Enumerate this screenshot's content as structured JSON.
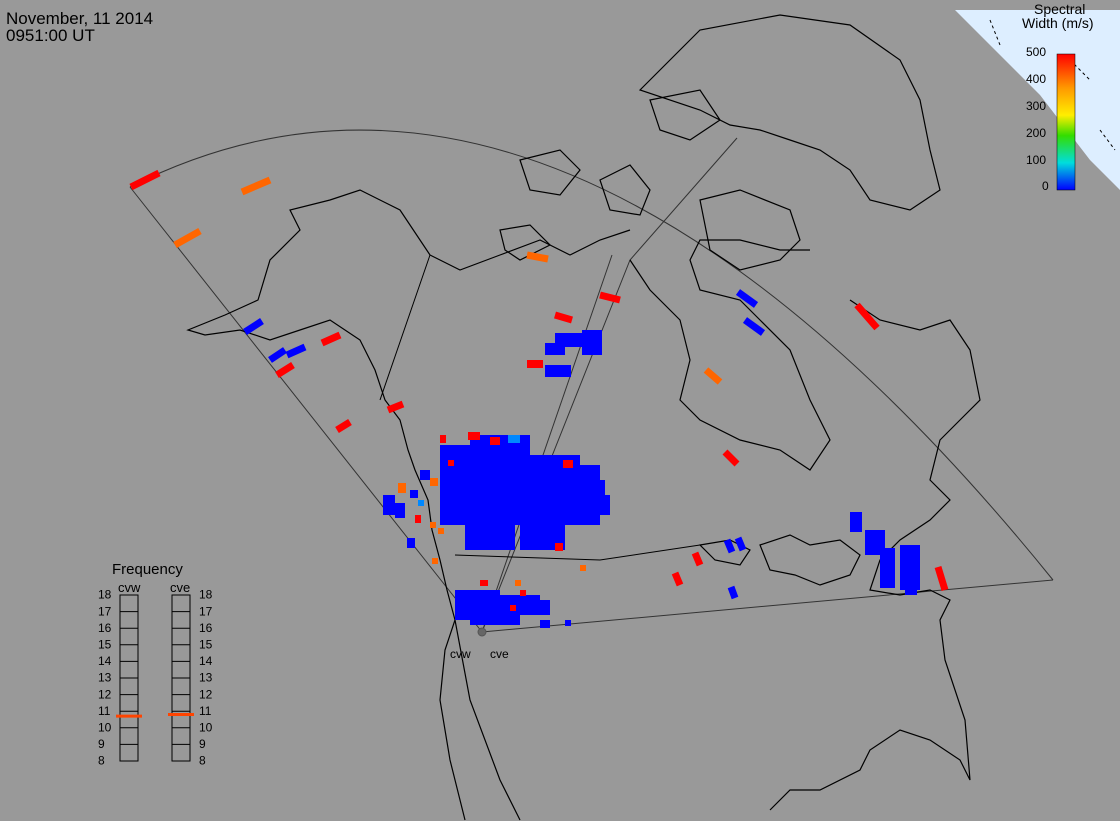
{
  "header": {
    "date": "November, 11 2014",
    "time": "0951:00 UT"
  },
  "colorbar": {
    "title_line1": "Spectral",
    "title_line2": "Width (m/s)",
    "ticks": [
      "500",
      "400",
      "300",
      "200",
      "100",
      "0"
    ],
    "colors": [
      "#ff0000",
      "#ff9900",
      "#ffee00",
      "#33dd00",
      "#00dddd",
      "#0000ff"
    ]
  },
  "frequency": {
    "title": "Frequency",
    "radar_left": "cvw",
    "radar_right": "cve",
    "scale": [
      "18",
      "17",
      "16",
      "15",
      "14",
      "13",
      "12",
      "11",
      "10",
      "9",
      "8"
    ],
    "left_value_mhz": 10.7,
    "right_value_mhz": 10.8,
    "marker_color": "#ff4400"
  },
  "radars": {
    "west": "cvw",
    "east": "cve"
  },
  "colors": {
    "background": "#999999",
    "red": "#ff0000",
    "orange": "#ff6600",
    "blue": "#0000ff",
    "light_blue": "#0088ff"
  }
}
